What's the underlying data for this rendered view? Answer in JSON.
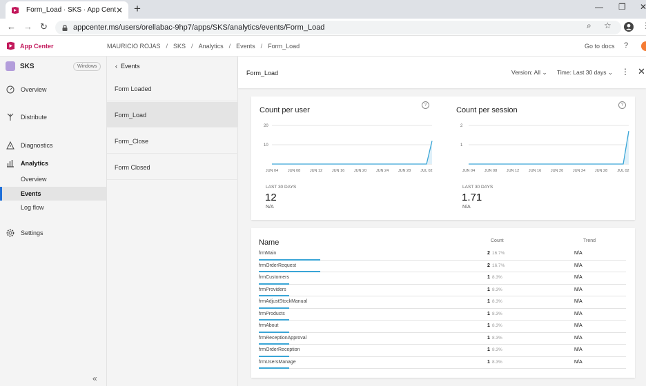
{
  "browser": {
    "tab_title": "Form_Load · SKS · App Center",
    "url": "appcenter.ms/users/orellabac-9hp7/apps/SKS/analytics/events/Form_Load"
  },
  "header": {
    "brand": "App Center",
    "breadcrumbs": [
      "MAURICIO ROJAS",
      "SKS",
      "Analytics",
      "Events",
      "Form_Load"
    ],
    "docs_label": "Go to docs"
  },
  "sidebar": {
    "app_name": "SKS",
    "os_badge": "Windows",
    "items": {
      "overview": "Overview",
      "distribute": "Distribute",
      "diagnostics": "Diagnostics",
      "analytics": "Analytics",
      "analytics_overview": "Overview",
      "events": "Events",
      "log_flow": "Log flow",
      "settings": "Settings"
    }
  },
  "events_panel": {
    "back_label": "Events",
    "items": [
      "Form Loaded",
      "Form_Load",
      "Form_Close",
      "Form Closed"
    ]
  },
  "detail": {
    "title": "Form_Load",
    "version_filter": "Version: All",
    "time_filter": "Time: Last 30 days"
  },
  "chart_data": [
    {
      "type": "line",
      "title": "Count per user",
      "x": [
        "JUN 04",
        "JUN 05",
        "JUN 06",
        "JUN 07",
        "JUN 08",
        "JUN 09",
        "JUN 10",
        "JUN 11",
        "JUN 12",
        "JUN 13",
        "JUN 14",
        "JUN 15",
        "JUN 16",
        "JUN 17",
        "JUN 18",
        "JUN 19",
        "JUN 20",
        "JUN 21",
        "JUN 22",
        "JUN 23",
        "JUN 24",
        "JUN 25",
        "JUN 26",
        "JUN 27",
        "JUN 28",
        "JUN 29",
        "JUN 30",
        "JUL 01",
        "JUL 02",
        "JUL 03"
      ],
      "values": [
        0,
        0,
        0,
        0,
        0,
        0,
        0,
        0,
        0,
        0,
        0,
        0,
        0,
        0,
        0,
        0,
        0,
        0,
        0,
        0,
        0,
        0,
        0,
        0,
        0,
        0,
        0,
        0,
        0,
        12
      ],
      "xticks": [
        "JUN 04",
        "JUN 08",
        "JUN 12",
        "JUN 16",
        "JUN 20",
        "JUN 24",
        "JUN 28",
        "JUL 02"
      ],
      "yticks": [
        "10",
        "20"
      ],
      "ylim": [
        0,
        20
      ],
      "grid": true,
      "stat_label": "LAST 30 DAYS",
      "stat_value": "12",
      "stat_sub": "N/A"
    },
    {
      "type": "line",
      "title": "Count per session",
      "x": [
        "JUN 04",
        "JUN 05",
        "JUN 06",
        "JUN 07",
        "JUN 08",
        "JUN 09",
        "JUN 10",
        "JUN 11",
        "JUN 12",
        "JUN 13",
        "JUN 14",
        "JUN 15",
        "JUN 16",
        "JUN 17",
        "JUN 18",
        "JUN 19",
        "JUN 20",
        "JUN 21",
        "JUN 22",
        "JUN 23",
        "JUN 24",
        "JUN 25",
        "JUN 26",
        "JUN 27",
        "JUN 28",
        "JUN 29",
        "JUN 30",
        "JUL 01",
        "JUL 02",
        "JUL 03"
      ],
      "values": [
        0,
        0,
        0,
        0,
        0,
        0,
        0,
        0,
        0,
        0,
        0,
        0,
        0,
        0,
        0,
        0,
        0,
        0,
        0,
        0,
        0,
        0,
        0,
        0,
        0,
        0,
        0,
        0,
        0,
        1.71
      ],
      "xticks": [
        "JUN 04",
        "JUN 08",
        "JUN 12",
        "JUN 16",
        "JUN 20",
        "JUN 24",
        "JUN 28",
        "JUL 02"
      ],
      "yticks": [
        "1",
        "2"
      ],
      "ylim": [
        0,
        2
      ],
      "grid": true,
      "stat_label": "LAST 30 DAYS",
      "stat_value": "1.71",
      "stat_sub": "N/A"
    }
  ],
  "table": {
    "name_header": "Name",
    "count_header": "Count",
    "trend_header": "Trend",
    "rows": [
      {
        "name": "frmMain",
        "count": "2",
        "pct": "16.7%",
        "share": 16.7,
        "trend": "N/A"
      },
      {
        "name": "frmOrderRequest",
        "count": "2",
        "pct": "16.7%",
        "share": 16.7,
        "trend": "N/A"
      },
      {
        "name": "frmCustomers",
        "count": "1",
        "pct": "8.3%",
        "share": 8.3,
        "trend": "N/A"
      },
      {
        "name": "frmProviders",
        "count": "1",
        "pct": "8.3%",
        "share": 8.3,
        "trend": "N/A"
      },
      {
        "name": "frmAdjustStockManual",
        "count": "1",
        "pct": "8.3%",
        "share": 8.3,
        "trend": "N/A"
      },
      {
        "name": "frmProducts",
        "count": "1",
        "pct": "8.3%",
        "share": 8.3,
        "trend": "N/A"
      },
      {
        "name": "frmAbout",
        "count": "1",
        "pct": "8.3%",
        "share": 8.3,
        "trend": "N/A"
      },
      {
        "name": "frmReceptionApproval",
        "count": "1",
        "pct": "8.3%",
        "share": 8.3,
        "trend": "N/A"
      },
      {
        "name": "frmOrderReception",
        "count": "1",
        "pct": "8.3%",
        "share": 8.3,
        "trend": "N/A"
      },
      {
        "name": "frmUsersManage",
        "count": "1",
        "pct": "8.3%",
        "share": 8.3,
        "trend": "N/A"
      }
    ]
  },
  "colors": {
    "accent": "#c2185b",
    "chart_line": "#39a5d6",
    "active_nav": "#1e6fd9"
  }
}
